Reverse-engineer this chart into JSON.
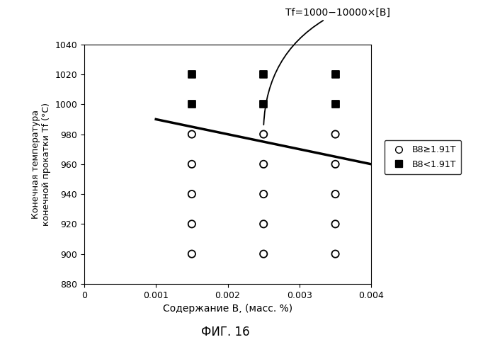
{
  "open_circles": {
    "x": [
      0.0015,
      0.0015,
      0.0015,
      0.0015,
      0.0015,
      0.0025,
      0.0025,
      0.0025,
      0.0025,
      0.0025,
      0.0035,
      0.0035,
      0.0035,
      0.0035,
      0.0035
    ],
    "y": [
      900,
      920,
      940,
      960,
      980,
      900,
      920,
      940,
      960,
      980,
      900,
      920,
      940,
      960,
      980
    ]
  },
  "filled_squares": {
    "x": [
      0.0015,
      0.0015,
      0.0025,
      0.0025,
      0.0035,
      0.0035
    ],
    "y": [
      1000,
      1020,
      1000,
      1020,
      1000,
      1020
    ]
  },
  "line_x_start": 0.001,
  "line_x_end": 0.004,
  "line_slope": -10000,
  "line_intercept": 1000,
  "xlim": [
    0,
    0.004
  ],
  "ylim": [
    880,
    1040
  ],
  "xticks": [
    0,
    0.001,
    0.002,
    0.003,
    0.004
  ],
  "yticks": [
    880,
    900,
    920,
    940,
    960,
    980,
    1000,
    1020,
    1040
  ],
  "xlabel": "Содержание B, (масс. %)",
  "ylabel": "Конечная температура\nконечной прокатки Tf (°C)",
  "fig_label": "ФИГ. 16",
  "legend_circle": "B8≥1.91T",
  "legend_square": "B8<1.91T",
  "annotation": "Tf=1000−10000×[B]",
  "line_color": "#000000",
  "background_color": "#ffffff"
}
